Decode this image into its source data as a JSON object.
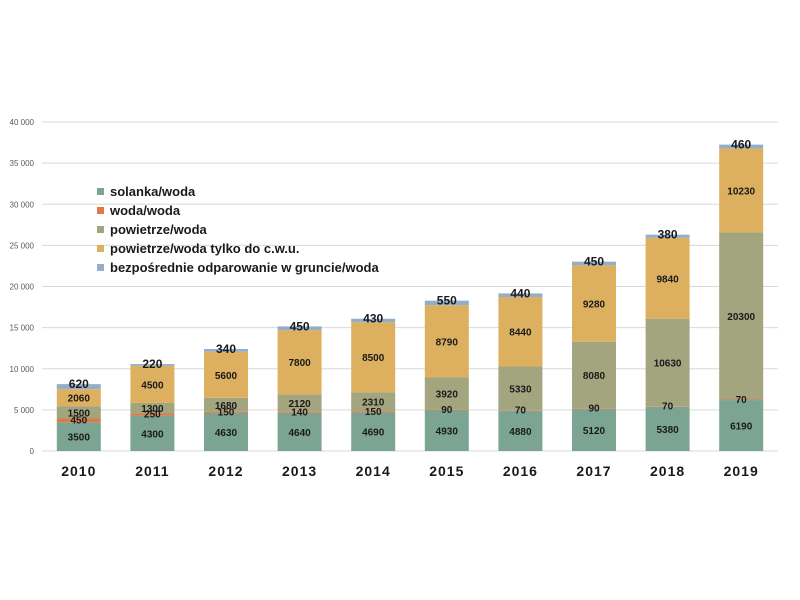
{
  "chart_data": {
    "type": "bar",
    "stacked": true,
    "categories": [
      "2010",
      "2011",
      "2012",
      "2013",
      "2014",
      "2015",
      "2016",
      "2017",
      "2018",
      "2019"
    ],
    "ylim": [
      0,
      40000
    ],
    "yticks": [
      0,
      5000,
      10000,
      15000,
      20000,
      25000,
      30000,
      35000,
      40000
    ],
    "ytick_labels": [
      "0",
      "5 000",
      "10 000",
      "15 000",
      "20 000",
      "25 000",
      "30 000",
      "35 000",
      "40 000"
    ],
    "grid": true,
    "legend_position": "top-left",
    "series": [
      {
        "name": "solanka/woda",
        "color": "#7ba493",
        "values": [
          3500,
          4300,
          4630,
          4640,
          4690,
          4930,
          4880,
          5120,
          5380,
          6190
        ]
      },
      {
        "name": "woda/woda",
        "color": "#e07848",
        "values": [
          450,
          250,
          150,
          140,
          150,
          90,
          70,
          90,
          70,
          70
        ]
      },
      {
        "name": "powietrze/woda",
        "color": "#a3a57f",
        "values": [
          1500,
          1300,
          1680,
          2120,
          2310,
          3920,
          5330,
          8080,
          10630,
          20300
        ]
      },
      {
        "name": "powietrze/woda tylko do c.w.u.",
        "color": "#dcb05f",
        "values": [
          2060,
          4500,
          5600,
          7800,
          8500,
          8790,
          8440,
          9280,
          9840,
          10230
        ]
      },
      {
        "name": "bezpośrednie odparowanie w gruncie/woda",
        "color": "#94aec8",
        "values": [
          620,
          220,
          340,
          450,
          430,
          550,
          440,
          450,
          380,
          460
        ]
      }
    ]
  }
}
